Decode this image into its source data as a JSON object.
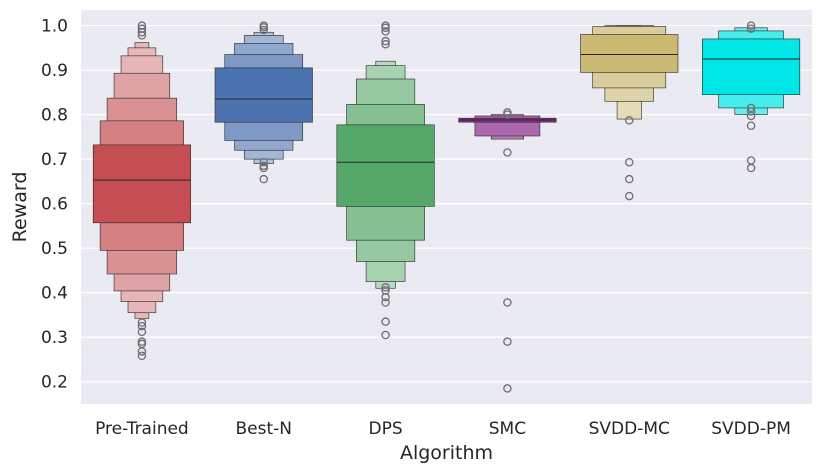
{
  "chart_data": {
    "type": "boxenplot",
    "title": "",
    "xlabel": "Algorithm",
    "ylabel": "Reward",
    "ylim": [
      0.15,
      1.035
    ],
    "yticks": [
      0.2,
      0.3,
      0.4,
      0.5,
      0.6,
      0.7,
      0.8,
      0.9,
      1.0
    ],
    "ytick_labels": [
      "0.2",
      "0.3",
      "0.4",
      "0.5",
      "0.6",
      "0.7",
      "0.8",
      "0.9",
      "1.0"
    ],
    "grid": true,
    "background": "#eaeaf2",
    "series": [
      {
        "name": "Pre-Trained",
        "color": "#c44e52",
        "median": 0.653,
        "levels": [
          [
            0.557,
            0.732
          ],
          [
            0.495,
            0.786
          ],
          [
            0.442,
            0.837
          ],
          [
            0.404,
            0.893
          ],
          [
            0.38,
            0.932
          ],
          [
            0.355,
            0.95
          ],
          [
            0.342,
            0.962
          ]
        ],
        "outliers": [
          0.258,
          0.268,
          0.285,
          0.29,
          0.312,
          0.325,
          0.333,
          0.978,
          0.985,
          0.993,
          1.0
        ]
      },
      {
        "name": "Best-N",
        "color": "#4c72b0",
        "median": 0.835,
        "levels": [
          [
            0.783,
            0.905
          ],
          [
            0.742,
            0.935
          ],
          [
            0.72,
            0.96
          ],
          [
            0.7,
            0.978
          ],
          [
            0.69,
            0.985
          ]
        ],
        "outliers": [
          0.655,
          0.68,
          0.685,
          0.693,
          0.99,
          0.996,
          1.0
        ]
      },
      {
        "name": "DPS",
        "color": "#55a868",
        "median": 0.693,
        "levels": [
          [
            0.594,
            0.777
          ],
          [
            0.518,
            0.823
          ],
          [
            0.47,
            0.88
          ],
          [
            0.425,
            0.91
          ],
          [
            0.41,
            0.92
          ]
        ],
        "outliers": [
          0.305,
          0.335,
          0.378,
          0.39,
          0.405,
          0.412,
          0.958,
          0.965,
          0.987,
          0.995,
          1.0
        ]
      },
      {
        "name": "SMC",
        "color": "#8c2d8c",
        "median": 0.788,
        "levels": [
          [
            0.783,
            0.792
          ],
          [
            0.752,
            0.797
          ],
          [
            0.745,
            0.8
          ]
        ],
        "outliers": [
          0.185,
          0.29,
          0.378,
          0.715,
          0.8,
          0.805
        ]
      },
      {
        "name": "SVDD-MC",
        "color": "#ccb974",
        "median": 0.935,
        "levels": [
          [
            0.895,
            0.98
          ],
          [
            0.86,
            0.998
          ],
          [
            0.83,
            1.0
          ],
          [
            0.79,
            1.0
          ]
        ],
        "outliers": [
          0.617,
          0.655,
          0.693,
          0.787
        ]
      },
      {
        "name": "SVDD-PM",
        "color": "#00e5e5",
        "median": 0.925,
        "levels": [
          [
            0.845,
            0.97
          ],
          [
            0.815,
            0.988
          ],
          [
            0.8,
            0.995
          ]
        ],
        "outliers": [
          0.68,
          0.697,
          0.775,
          0.797,
          0.807,
          0.815,
          0.993,
          1.0
        ]
      }
    ]
  }
}
